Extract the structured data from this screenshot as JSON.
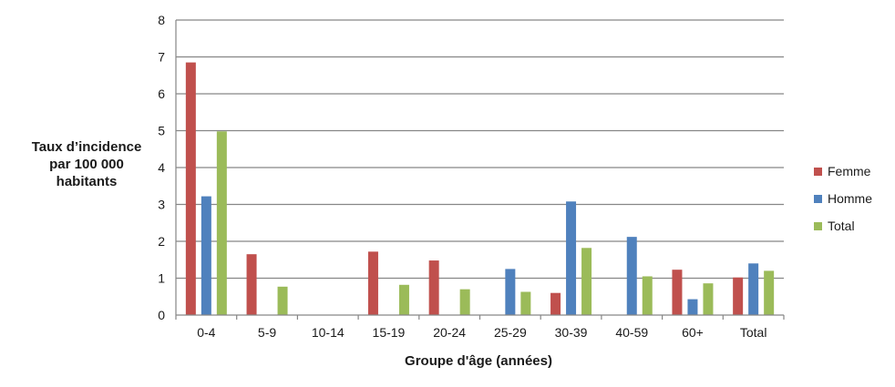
{
  "chart_data": {
    "type": "bar",
    "ylabel_lines": [
      "Taux d’incidence",
      "par 100 000",
      "habitants"
    ],
    "xlabel": "Groupe d'âge (années)",
    "categories": [
      "0-4",
      "5-9",
      "10-14",
      "15-19",
      "20-24",
      "25-29",
      "30-39",
      "40-59",
      "60+",
      "Total"
    ],
    "series": [
      {
        "name": "Femme",
        "color": "#c0504d",
        "values": [
          6.85,
          1.65,
          null,
          1.72,
          1.48,
          null,
          0.6,
          null,
          1.23,
          1.02
        ]
      },
      {
        "name": "Homme",
        "color": "#4f81bd",
        "values": [
          3.22,
          null,
          null,
          null,
          null,
          1.25,
          3.08,
          2.12,
          0.43,
          1.4
        ]
      },
      {
        "name": "Total",
        "color": "#9bbb59",
        "values": [
          4.98,
          0.77,
          null,
          0.82,
          0.7,
          0.63,
          1.82,
          1.05,
          0.86,
          1.2
        ]
      }
    ],
    "ylim": [
      0,
      8
    ],
    "yticks": [
      0,
      1,
      2,
      3,
      4,
      5,
      6,
      7,
      8
    ],
    "grid": true,
    "legend_position": "right"
  }
}
